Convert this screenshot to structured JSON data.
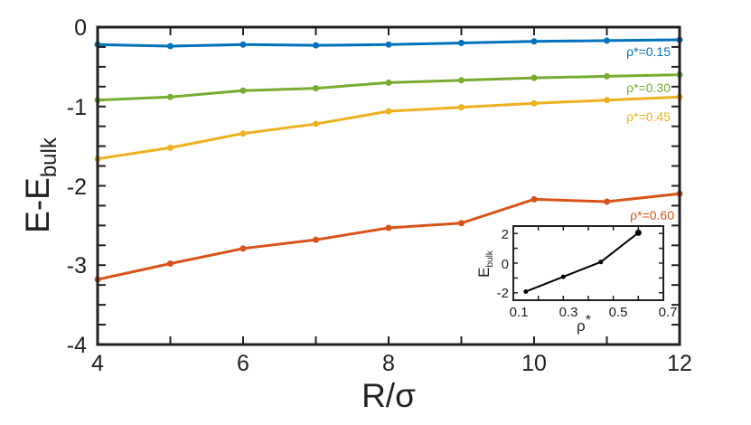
{
  "chart_data": [
    {
      "type": "line",
      "xlabel": "R/σ",
      "ylabel_main": "E-E",
      "ylabel_sub": "bulk",
      "xlim": [
        4,
        12
      ],
      "ylim": [
        -4,
        0
      ],
      "xticks": [
        "4",
        "6",
        "8",
        "10",
        "12"
      ],
      "yticks": [
        "-4",
        "-3",
        "-2",
        "-1",
        "0"
      ],
      "x": [
        4,
        5,
        6,
        7,
        8,
        9,
        10,
        11,
        12
      ],
      "series": [
        {
          "name": "ρ*=0.15",
          "color": "#0072bd",
          "values": [
            -0.22,
            -0.24,
            -0.22,
            -0.23,
            -0.22,
            -0.2,
            -0.18,
            -0.17,
            -0.16
          ]
        },
        {
          "name": "ρ*=0.30",
          "color": "#77ac30",
          "values": [
            -0.92,
            -0.88,
            -0.8,
            -0.77,
            -0.7,
            -0.67,
            -0.64,
            -0.62,
            -0.6
          ]
        },
        {
          "name": "ρ*=0.45",
          "color": "#edb120",
          "values": [
            -1.66,
            -1.52,
            -1.34,
            -1.22,
            -1.06,
            -1.01,
            -0.96,
            -0.92,
            -0.88
          ]
        },
        {
          "name": "ρ*=0.60",
          "color": "#d95319",
          "values": [
            -3.18,
            -2.98,
            -2.79,
            -2.68,
            -2.53,
            -2.47,
            -2.17,
            -2.2,
            -2.1
          ]
        }
      ]
    },
    {
      "type": "line",
      "xlabel_main": "ρ",
      "xlabel_sup": "*",
      "ylabel_main": "E",
      "ylabel_sub": "bulk",
      "xlim": [
        0.1,
        0.7
      ],
      "ylim": [
        -2.5,
        2.5
      ],
      "xticks": [
        "0.1",
        "0.3",
        "0.5",
        "0.7"
      ],
      "yticks": [
        "-2",
        "0",
        "2"
      ],
      "x": [
        0.15,
        0.3,
        0.45,
        0.6
      ],
      "values": [
        -1.92,
        -0.92,
        0.08,
        2.05
      ],
      "color": "#000000"
    }
  ]
}
